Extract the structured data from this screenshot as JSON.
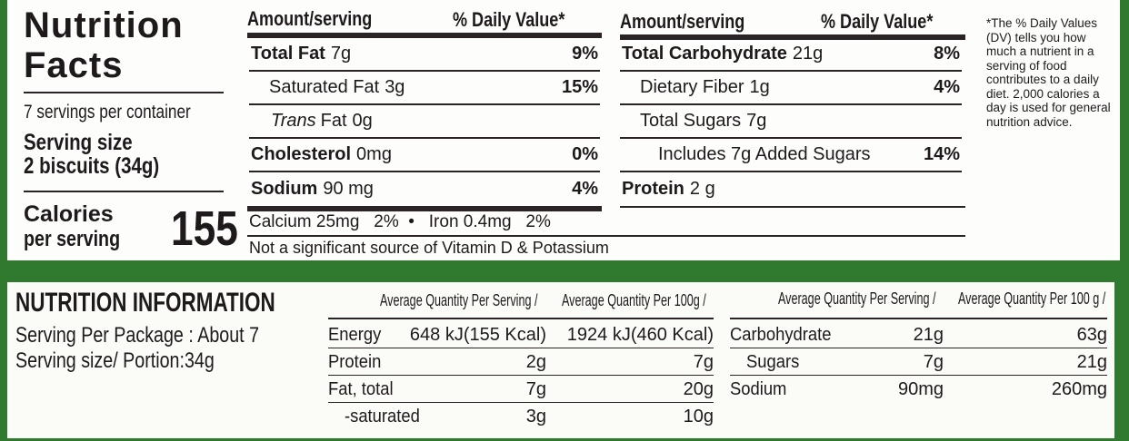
{
  "facts": {
    "title_line1": "Nutrition",
    "title_line2": "Facts",
    "servings_per_container": "7 servings per container",
    "serving_size_label": "Serving size",
    "serving_size_value": "2 biscuits (34g)",
    "calories_label_line1": "Calories",
    "calories_label_line2": "per serving",
    "calories_value": "155",
    "header_amount": "Amount/serving",
    "header_dv": "% Daily Value*",
    "left_rows": [
      {
        "name": "Total Fat",
        "amount": "7g",
        "dv": "9%",
        "bold": true
      },
      {
        "name": "Saturated Fat",
        "amount": "3g",
        "dv": "15%",
        "bold": false
      },
      {
        "name": "Trans",
        "name_suffix": "Fat",
        "amount": "0g",
        "dv": "",
        "bold": false
      },
      {
        "name": "Cholesterol",
        "amount": "0mg",
        "dv": "0%",
        "bold": true
      },
      {
        "name": "Sodium",
        "amount": "90 mg",
        "dv": "4%",
        "bold": true
      }
    ],
    "right_rows": [
      {
        "name": "Total Carbohydrate",
        "amount": "21g",
        "dv": "8%",
        "bold": true
      },
      {
        "name": "Dietary Fiber",
        "amount": "1g",
        "dv": "4%",
        "bold": false
      },
      {
        "name": "Total Sugars",
        "amount": "7g",
        "dv": "",
        "bold": false
      },
      {
        "name": "Includes 7g Added Sugars",
        "amount": "",
        "dv": "14%",
        "bold": false
      },
      {
        "name": "Protein",
        "amount": "2 g",
        "dv": "",
        "bold": true
      }
    ],
    "minerals": "Calcium 25mg   2%  •   Iron 0.4mg   2%",
    "not_significant": "Not a significant source of Vitamin D & Potassium",
    "footnote": "*The % Daily Values (DV) tells you how much a nutrient in a serving of food contributes to a daily diet. 2,000 calories a day is used for general nutrition advice."
  },
  "info": {
    "title": "NUTRITION INFORMATION",
    "serving_per_package": "Serving Per Package : About 7",
    "serving_size": "Serving size/ Portion:34g",
    "col_per_serving": "Average Quantity Per Serving /",
    "col_per_100g": "Average Quantity Per 100g /",
    "col_per_100g_right": "Average Quantity Per 100 g /",
    "left_rows": [
      {
        "name": "Energy",
        "serving": "648 kJ(155 Kcal)",
        "per100": "1924 kJ(460 Kcal)"
      },
      {
        "name": "Protein",
        "serving": "2g",
        "per100": "7g"
      },
      {
        "name": "Fat, total",
        "serving": "7g",
        "per100": "20g"
      },
      {
        "name": "-saturated",
        "serving": "3g",
        "per100": "10g"
      }
    ],
    "right_rows": [
      {
        "name": "Carbohydrate",
        "serving": "21g",
        "per100": "63g"
      },
      {
        "name": "Sugars",
        "serving": "7g",
        "per100": "21g"
      },
      {
        "name": "Sodium",
        "serving": "90mg",
        "per100": "260mg"
      }
    ]
  },
  "colors": {
    "background_green": "#2f7a2e"
  }
}
